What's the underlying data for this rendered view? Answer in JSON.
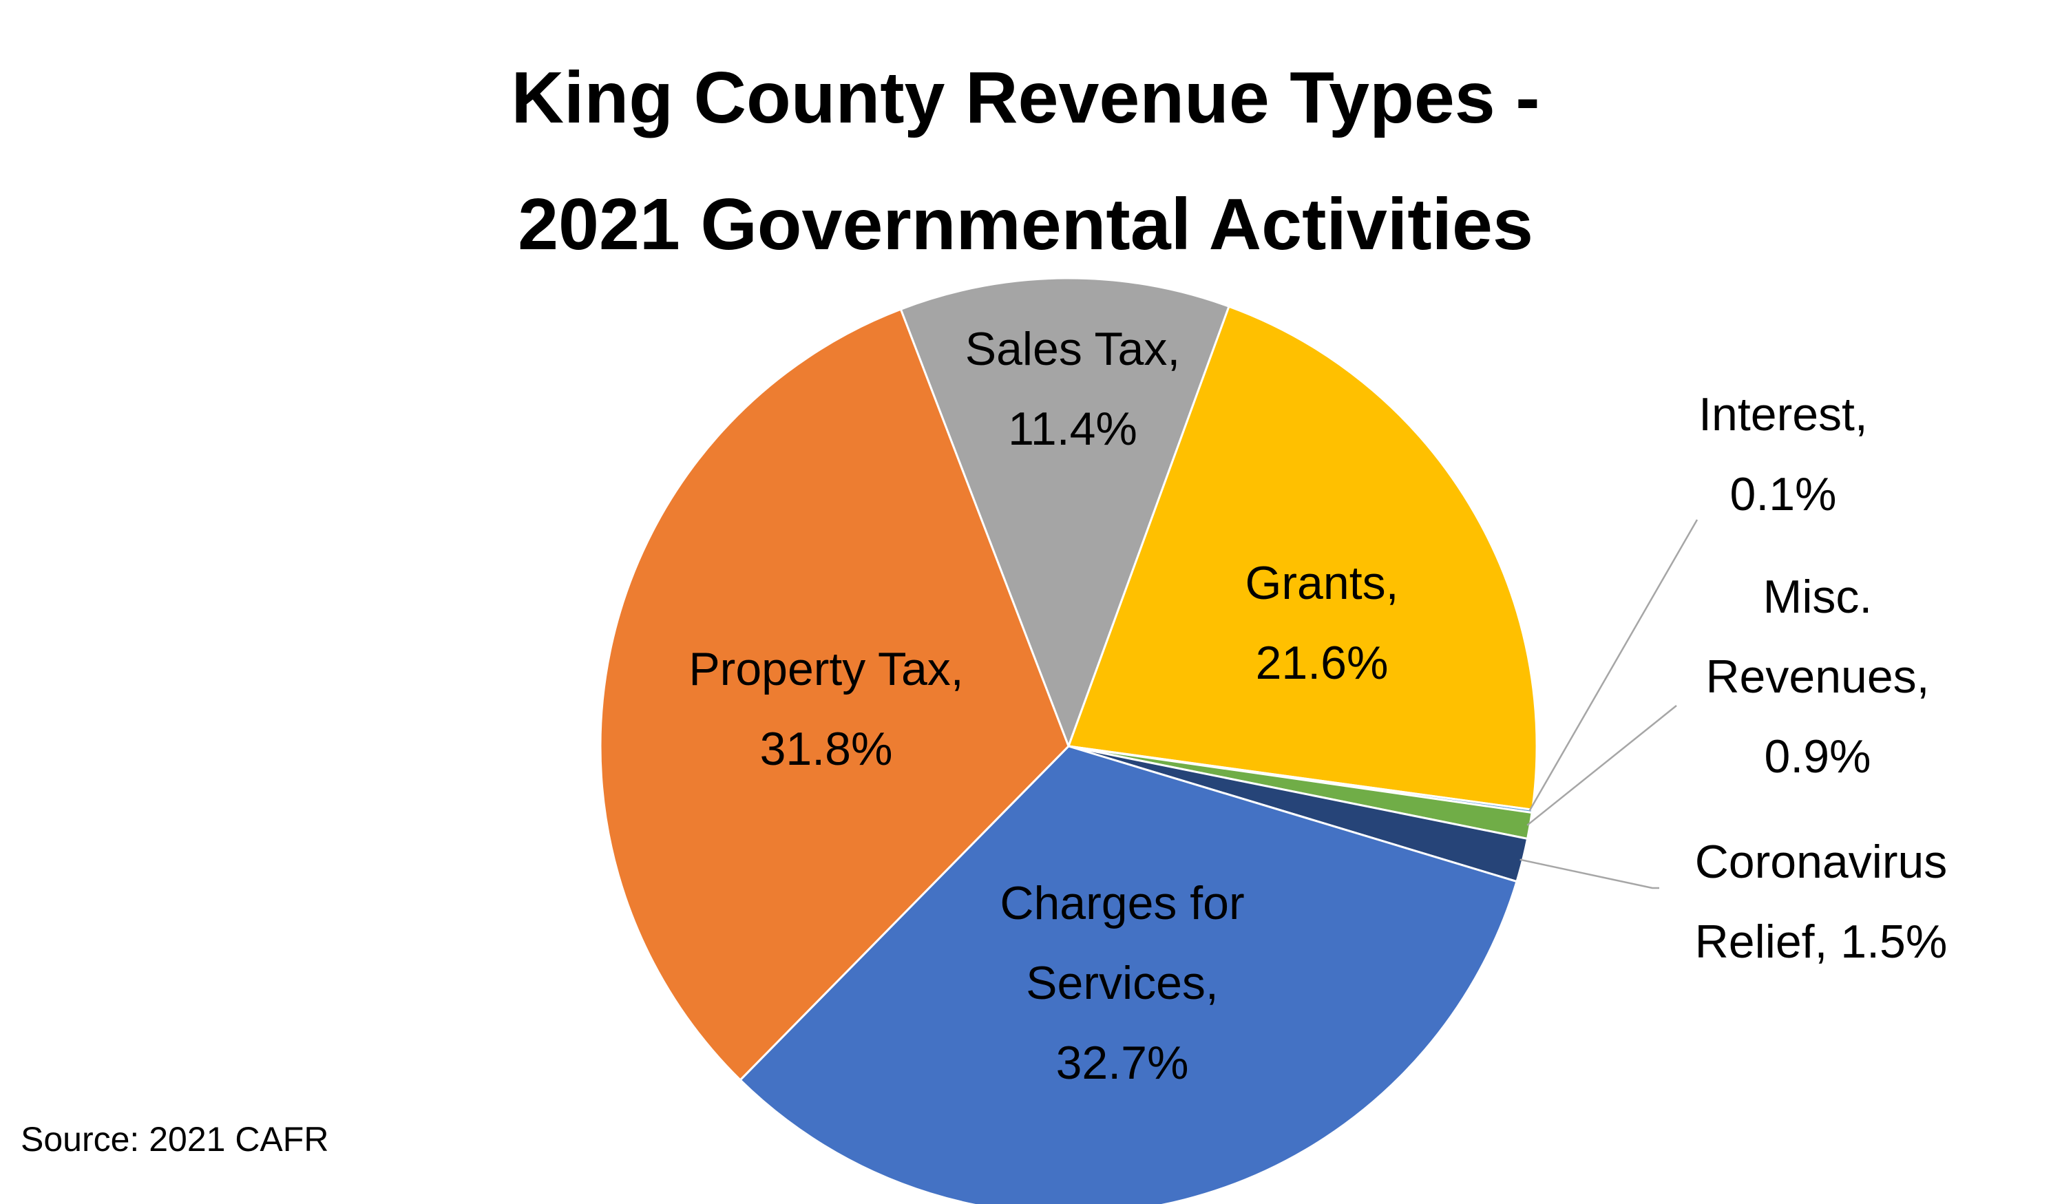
{
  "chart_data": {
    "type": "pie",
    "title": "King County Revenue Types - 2021 Governmental Activities",
    "title_lines": [
      "King County Revenue Types -",
      "2021 Governmental Activities"
    ],
    "slices": [
      {
        "name": "Sales Tax",
        "value": 11.4,
        "label_lines": [
          "Sales Tax,",
          "11.4%"
        ],
        "color": "#A5A5A5"
      },
      {
        "name": "Grants",
        "value": 21.6,
        "label_lines": [
          "Grants,",
          "21.6%"
        ],
        "color": "#FFC000"
      },
      {
        "name": "Interest",
        "value": 0.1,
        "label_lines": [
          "Interest,",
          "0.1%"
        ],
        "color": "#5B9BD5"
      },
      {
        "name": "Misc. Revenues",
        "value": 0.9,
        "label_lines": [
          "Misc.",
          "Revenues,",
          "0.9%"
        ],
        "color": "#70AD47"
      },
      {
        "name": "Coronavirus Relief",
        "value": 1.5,
        "label_lines": [
          "Coronavirus",
          "Relief, 1.5%"
        ],
        "color": "#264478"
      },
      {
        "name": "Charges for Services",
        "value": 32.7,
        "label_lines": [
          "Charges for",
          "Services,",
          "32.7%"
        ],
        "color": "#4472C4"
      },
      {
        "name": "Property Tax",
        "value": 31.8,
        "label_lines": [
          "Property Tax,",
          "31.8%"
        ],
        "color": "#ED7D31"
      }
    ],
    "start_angle_deg": -21,
    "direction": "clockwise"
  },
  "source_note": "Source: 2021 CAFR"
}
